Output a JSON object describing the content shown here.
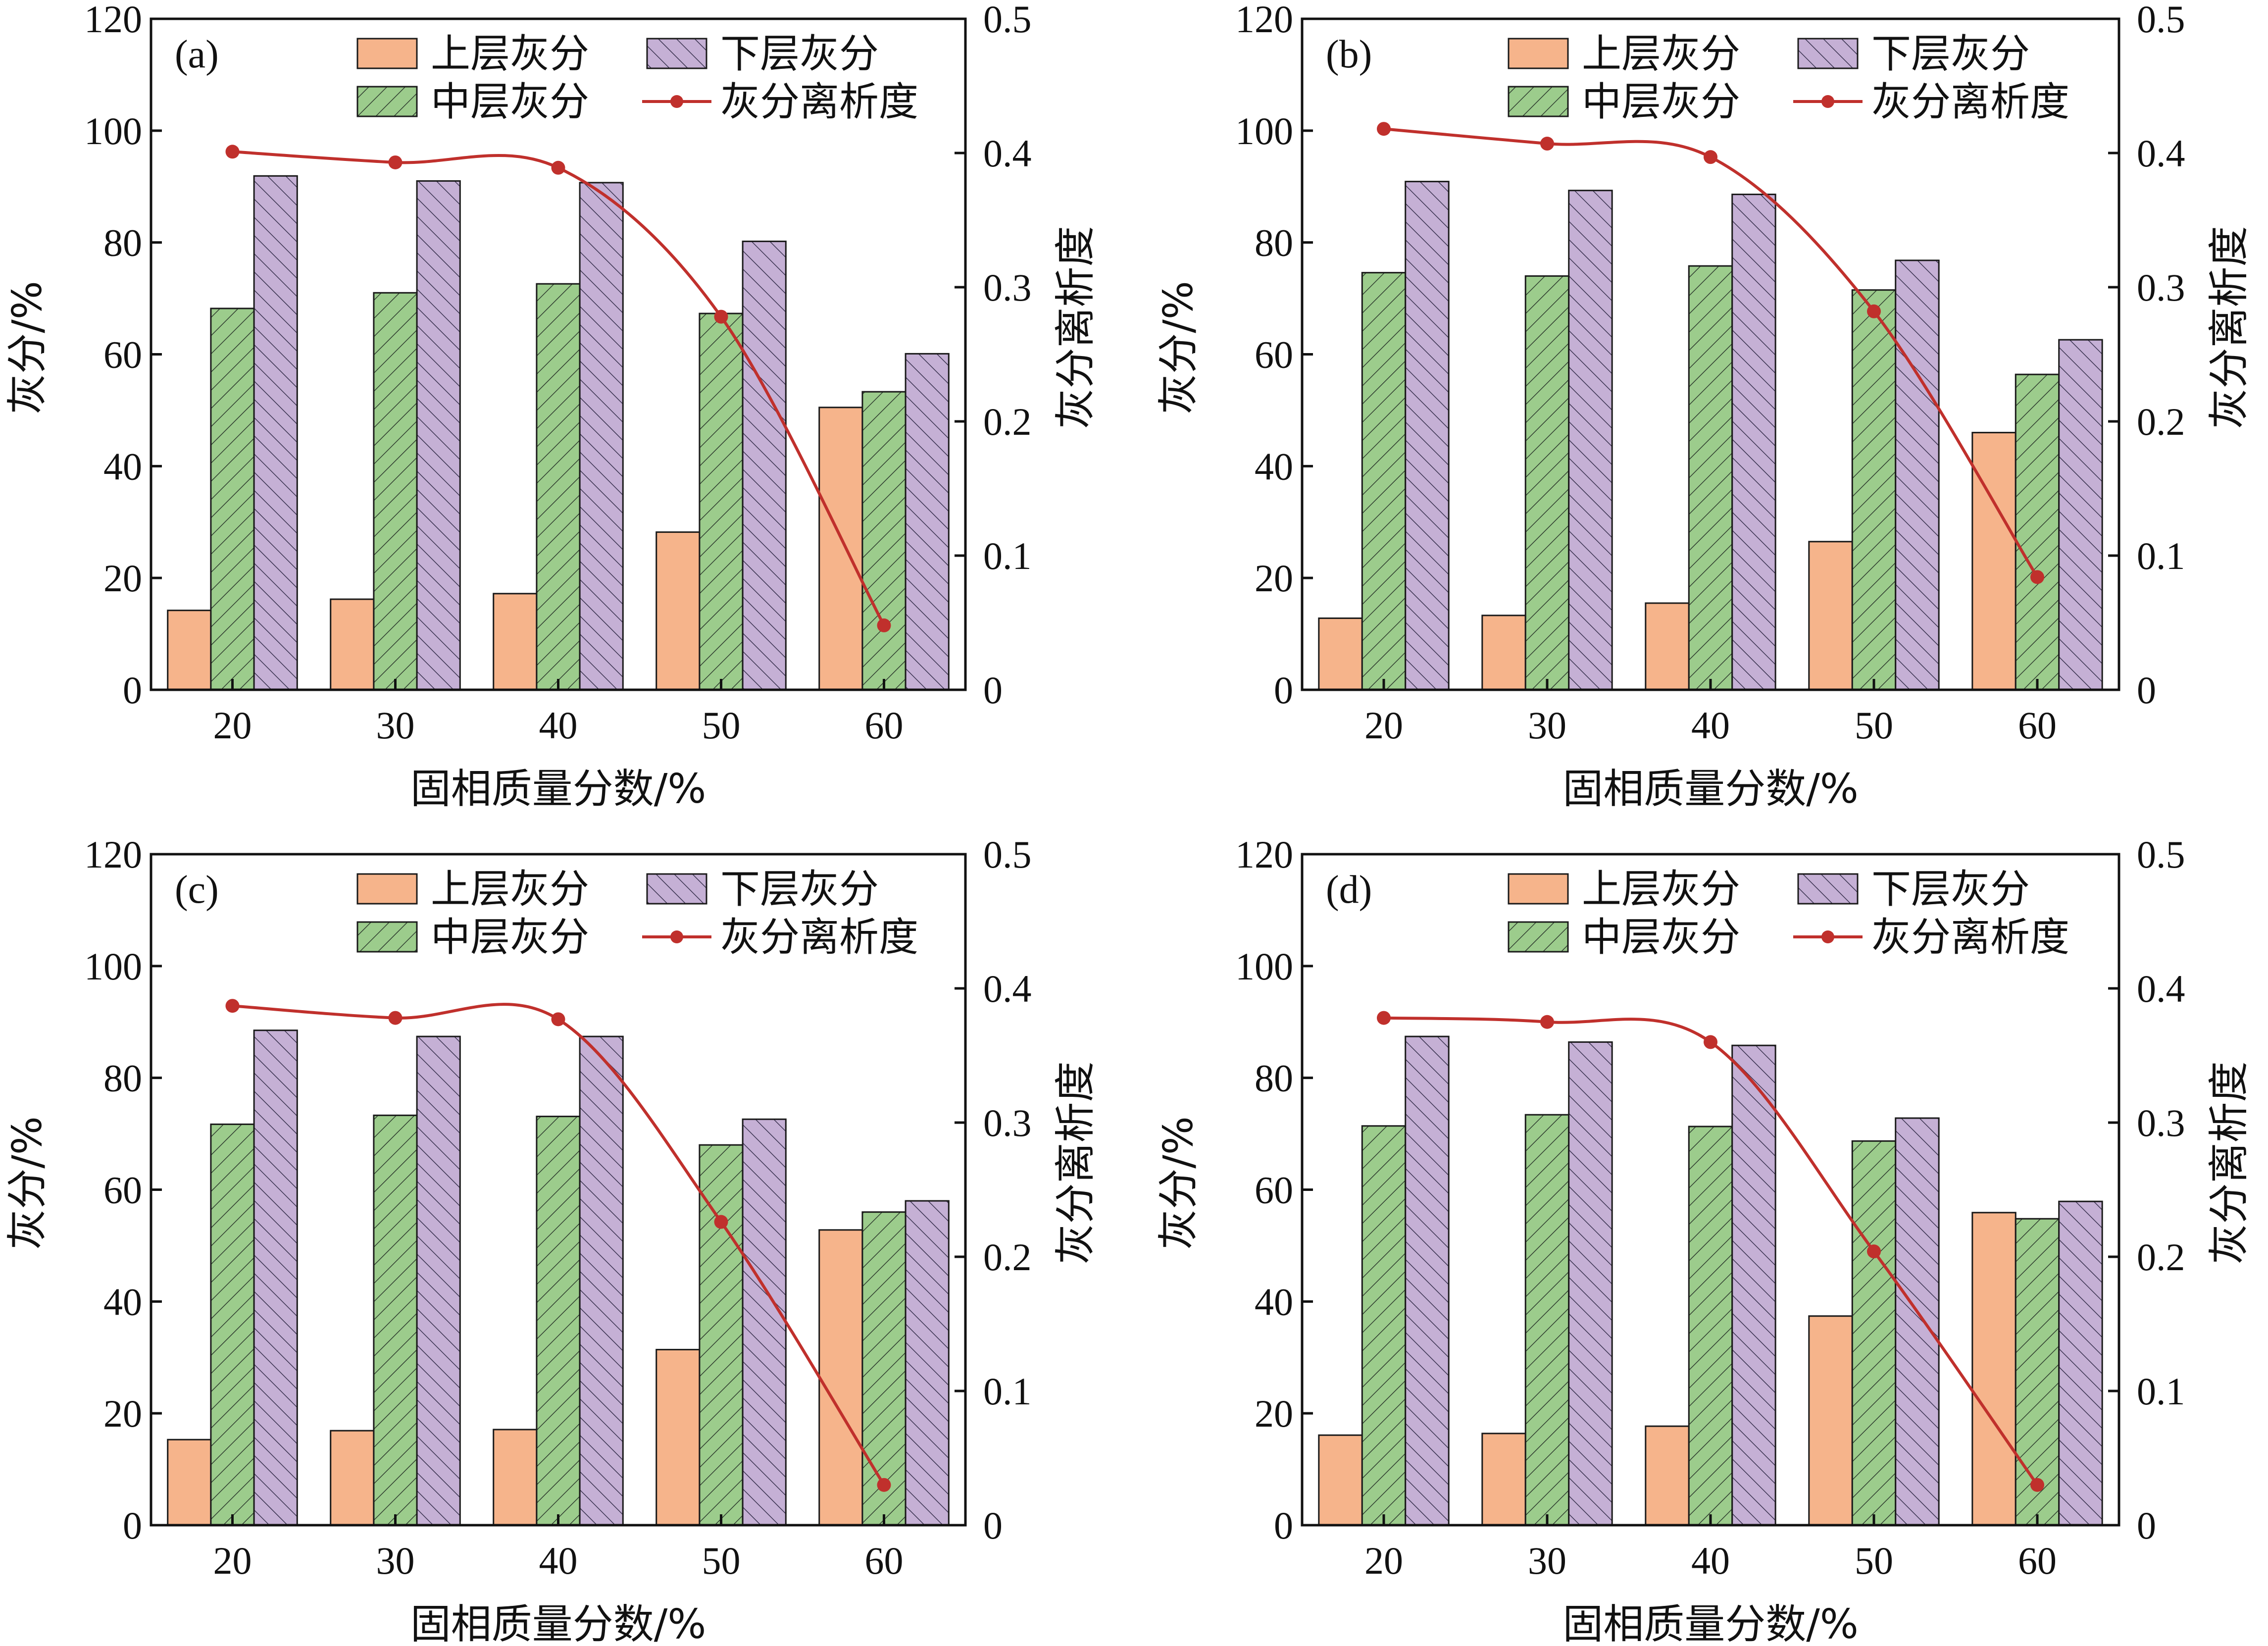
{
  "colors": {
    "upper": "#f6b48b",
    "middle": "#9ccc8c",
    "lower": "#c5b0d5",
    "line": "#c0302c",
    "hatch_dark": "#2f3d2f",
    "axis": "#111111"
  },
  "legend_labels": {
    "upper": "上层灰分",
    "lower": "下层灰分",
    "middle": "中层灰分",
    "line": "灰分离析度"
  },
  "chart_data": [
    {
      "panel": "(a)",
      "type": "bar",
      "categories": [
        "20",
        "30",
        "40",
        "50",
        "60"
      ],
      "xlabel": "固相质量分数/%",
      "ylabel": "灰分/%",
      "y2label": "灰分离析度",
      "ylim": [
        0,
        120
      ],
      "y2lim": [
        0,
        0.5
      ],
      "yticks": [
        "0",
        "20",
        "40",
        "60",
        "80",
        "100",
        "120"
      ],
      "y2ticks": [
        "0",
        "0.1",
        "0.2",
        "0.3",
        "0.4",
        "0.5"
      ],
      "series": [
        {
          "name": "上层灰分",
          "key": "upper",
          "values": [
            14.2,
            16.2,
            17.2,
            28.2,
            50.5
          ]
        },
        {
          "name": "中层灰分",
          "key": "middle",
          "values": [
            68.2,
            71.0,
            72.6,
            67.3,
            53.3
          ]
        },
        {
          "name": "下层灰分",
          "key": "lower",
          "values": [
            91.9,
            91.0,
            90.7,
            80.2,
            60.1
          ]
        },
        {
          "name": "灰分离析度",
          "key": "line",
          "axis": "right",
          "values": [
            0.401,
            0.393,
            0.389,
            0.278,
            0.048
          ]
        }
      ]
    },
    {
      "panel": "(b)",
      "type": "bar",
      "categories": [
        "20",
        "30",
        "40",
        "50",
        "60"
      ],
      "xlabel": "固相质量分数/%",
      "ylabel": "灰分/%",
      "y2label": "灰分离析度",
      "ylim": [
        0,
        120
      ],
      "y2lim": [
        0,
        0.5
      ],
      "yticks": [
        "0",
        "20",
        "40",
        "60",
        "80",
        "100",
        "120"
      ],
      "y2ticks": [
        "0",
        "0.1",
        "0.2",
        "0.3",
        "0.4",
        "0.5"
      ],
      "series": [
        {
          "name": "上层灰分",
          "key": "upper",
          "values": [
            12.8,
            13.3,
            15.5,
            26.5,
            46.0
          ]
        },
        {
          "name": "中层灰分",
          "key": "middle",
          "values": [
            74.6,
            74.0,
            75.8,
            71.5,
            56.4
          ]
        },
        {
          "name": "下层灰分",
          "key": "lower",
          "values": [
            90.9,
            89.3,
            88.6,
            76.8,
            62.6
          ]
        },
        {
          "name": "灰分离析度",
          "key": "line",
          "axis": "right",
          "values": [
            0.418,
            0.407,
            0.397,
            0.282,
            0.084
          ]
        }
      ]
    },
    {
      "panel": "(c)",
      "type": "bar",
      "categories": [
        "20",
        "30",
        "40",
        "50",
        "60"
      ],
      "xlabel": "固相质量分数/%",
      "ylabel": "灰分/%",
      "y2label": "灰分离析度",
      "ylim": [
        0,
        120
      ],
      "y2lim": [
        0,
        0.5
      ],
      "yticks": [
        "0",
        "20",
        "40",
        "60",
        "80",
        "100",
        "120"
      ],
      "y2ticks": [
        "0",
        "0.1",
        "0.2",
        "0.3",
        "0.4",
        "0.5"
      ],
      "series": [
        {
          "name": "上层灰分",
          "key": "upper",
          "values": [
            15.3,
            16.9,
            17.1,
            31.4,
            52.8
          ]
        },
        {
          "name": "中层灰分",
          "key": "middle",
          "values": [
            71.7,
            73.3,
            73.1,
            68.0,
            56.0
          ]
        },
        {
          "name": "下层灰分",
          "key": "lower",
          "values": [
            88.5,
            87.4,
            87.4,
            72.6,
            58.0
          ]
        },
        {
          "name": "灰分离析度",
          "key": "line",
          "axis": "right",
          "values": [
            0.387,
            0.378,
            0.377,
            0.226,
            0.03
          ]
        }
      ]
    },
    {
      "panel": "(d)",
      "type": "bar",
      "categories": [
        "20",
        "30",
        "40",
        "50",
        "60"
      ],
      "xlabel": "固相质量分数/%",
      "ylabel": "灰分/%",
      "y2label": "灰分离析度",
      "ylim": [
        0,
        120
      ],
      "y2lim": [
        0,
        0.5
      ],
      "yticks": [
        "0",
        "20",
        "40",
        "60",
        "80",
        "100",
        "120"
      ],
      "y2ticks": [
        "0",
        "0.1",
        "0.2",
        "0.3",
        "0.4",
        "0.5"
      ],
      "series": [
        {
          "name": "上层灰分",
          "key": "upper",
          "values": [
            16.1,
            16.4,
            17.7,
            37.4,
            55.9
          ]
        },
        {
          "name": "中层灰分",
          "key": "middle",
          "values": [
            71.4,
            73.4,
            71.3,
            68.7,
            54.8
          ]
        },
        {
          "name": "下层灰分",
          "key": "lower",
          "values": [
            87.4,
            86.4,
            85.8,
            72.8,
            57.9
          ]
        },
        {
          "name": "灰分离析度",
          "key": "line",
          "axis": "right",
          "values": [
            0.378,
            0.375,
            0.36,
            0.204,
            0.03
          ]
        }
      ]
    }
  ]
}
